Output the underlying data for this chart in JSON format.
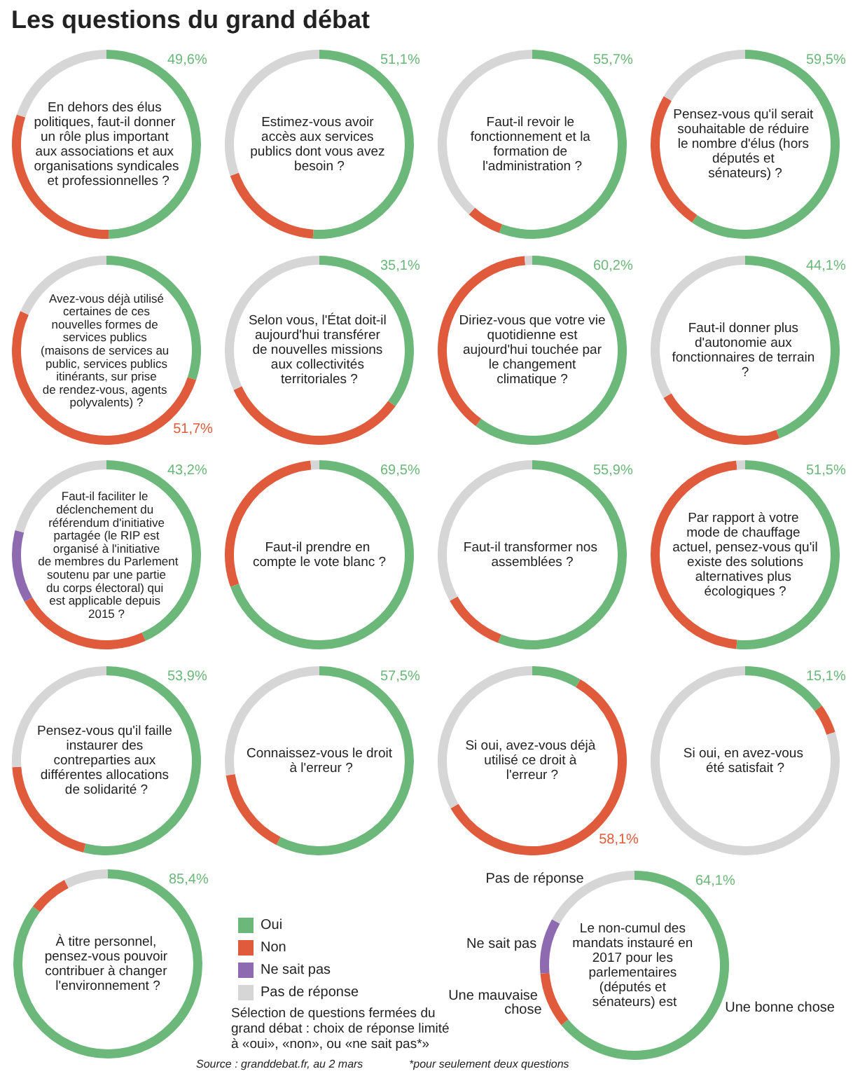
{
  "chart_data": [
    {
      "type": "other",
      "title": "Les questions du grand débat",
      "annotations": [
        "Sélection de questions fermées du grand débat :  choix de réponse limité à «oui», «non», ou «ne sait pas*»",
        "Source : granddebat.fr, au 2 mars",
        "*pour seulement deux questions"
      ]
    },
    {
      "type": "donut",
      "title": "En dehors des élus politiques, faut-il donner un rôle plus important aux associations et aux organisations syndicales et professionnelles ?",
      "categories": [
        null,
        null,
        null
      ],
      "values": [
        49.6,
        30.5,
        19.9
      ],
      "colors": [
        "#6cb87a",
        "#e05a3c",
        "#d6d6d6"
      ],
      "value_labels": [
        "49,6%",
        null,
        null
      ]
    },
    {
      "type": "donut",
      "title": "Estimez-vous avoir accès aux services publics dont vous avez besoin ?",
      "categories": [
        null,
        null,
        null
      ],
      "values": [
        51.1,
        18.5,
        30.4
      ],
      "colors": [
        "#6cb87a",
        "#e05a3c",
        "#d6d6d6"
      ],
      "value_labels": [
        "51,1%",
        null,
        null
      ]
    },
    {
      "type": "donut",
      "title": "Faut-il revoir le fonctionnement et la formation de l'administration ?",
      "categories": [
        null,
        null,
        null
      ],
      "values": [
        55.7,
        6,
        38.3
      ],
      "colors": [
        "#6cb87a",
        "#e05a3c",
        "#d6d6d6"
      ],
      "value_labels": [
        "55,7%",
        null,
        null
      ]
    },
    {
      "type": "donut",
      "title": "Pensez-vous qu'il serait souhaitable de réduire le nombre d'élus (hors députés et sénateurs) ?",
      "categories": [
        null,
        null,
        null
      ],
      "values": [
        59.5,
        24,
        16.5
      ],
      "colors": [
        "#6cb87a",
        "#e05a3c",
        "#d6d6d6"
      ],
      "value_labels": [
        "59,5%",
        null,
        null
      ]
    },
    {
      "type": "donut",
      "title": "Avez-vous déjà utilisé certaines de ces nouvelles formes de services publics (maisons de services au public, services publics itinérants, sur prise de rendez-vous, agents polyvalents) ?",
      "categories": [
        null,
        null,
        null
      ],
      "values": [
        30.1,
        51.7,
        18.2
      ],
      "colors": [
        "#6cb87a",
        "#e05a3c",
        "#d6d6d6"
      ],
      "value_labels": [
        null,
        "51,7%",
        null
      ]
    },
    {
      "type": "donut",
      "title": "Selon vous, l'État doit-il aujourd'hui transférer de nouvelles missions aux collectivités territoriales ?",
      "categories": [
        null,
        null,
        null
      ],
      "values": [
        35.1,
        33,
        31.9
      ],
      "colors": [
        "#6cb87a",
        "#e05a3c",
        "#d6d6d6"
      ],
      "value_labels": [
        "35,1%",
        null,
        null
      ]
    },
    {
      "type": "donut",
      "title": "Diriez-vous que votre vie quotidienne est aujourd'hui touchée par le changement climatique ?",
      "categories": [
        null,
        null,
        null
      ],
      "values": [
        60.2,
        38.5,
        1.3
      ],
      "colors": [
        "#6cb87a",
        "#e05a3c",
        "#d6d6d6"
      ],
      "value_labels": [
        "60,2%",
        null,
        null
      ]
    },
    {
      "type": "donut",
      "title": "Faut-il donner plus d'autonomie aux fonctionnaires de terrain ?",
      "categories": [
        null,
        null,
        null
      ],
      "values": [
        44.1,
        22.5,
        33.4
      ],
      "colors": [
        "#6cb87a",
        "#e05a3c",
        "#d6d6d6"
      ],
      "value_labels": [
        "44,1%",
        null,
        null
      ]
    },
    {
      "type": "donut",
      "title": "Faut-il faciliter le déclenchement du référendum d'initiative partagée (le RIP est organisé à l'initiative de membres du Parlement soutenu par une partie du corps électoral) qui est applicable depuis 2015 ?",
      "categories": [
        null,
        null,
        null,
        null
      ],
      "values": [
        43.2,
        23.5,
        12.5,
        20.8
      ],
      "colors": [
        "#6cb87a",
        "#e05a3c",
        "#8e6bb0",
        "#d6d6d6"
      ],
      "value_labels": [
        "43,2%",
        null,
        null,
        null
      ]
    },
    {
      "type": "donut",
      "title": "Faut-il prendre en compte le vote blanc ?",
      "categories": [
        null,
        null,
        null
      ],
      "values": [
        69.5,
        29,
        1.5
      ],
      "colors": [
        "#6cb87a",
        "#e05a3c",
        "#d6d6d6"
      ],
      "value_labels": [
        "69,5%",
        null,
        null
      ]
    },
    {
      "type": "donut",
      "title": "Faut-il transformer nos assemblées ?",
      "categories": [
        null,
        null,
        null
      ],
      "values": [
        55.9,
        11,
        33.1
      ],
      "colors": [
        "#6cb87a",
        "#e05a3c",
        "#d6d6d6"
      ],
      "value_labels": [
        "55,9%",
        null,
        null
      ]
    },
    {
      "type": "donut",
      "title": "Par rapport à votre mode de chauffage actuel, pensez-vous qu'il existe des solutions alternatives plus écologiques ?",
      "categories": [
        null,
        null,
        null
      ],
      "values": [
        51.5,
        47,
        1.5
      ],
      "colors": [
        "#6cb87a",
        "#e05a3c",
        "#d6d6d6"
      ],
      "value_labels": [
        "51,5%",
        null,
        null
      ]
    },
    {
      "type": "donut",
      "title": "Pensez-vous qu'il faille instaurer des contreparties aux différentes allocations de solidarité ?",
      "categories": [
        null,
        null,
        null
      ],
      "values": [
        53.9,
        20,
        26.1
      ],
      "colors": [
        "#6cb87a",
        "#e05a3c",
        "#d6d6d6"
      ],
      "value_labels": [
        "53,9%",
        null,
        null
      ]
    },
    {
      "type": "donut",
      "title": "Connaissez-vous le droit à l'erreur ?",
      "categories": [
        null,
        null,
        null
      ],
      "values": [
        57.5,
        15,
        27.5
      ],
      "colors": [
        "#6cb87a",
        "#e05a3c",
        "#d6d6d6"
      ],
      "value_labels": [
        "57,5%",
        null,
        null
      ]
    },
    {
      "type": "donut",
      "title": "Si oui, avez-vous déjà utilisé ce droit à l'erreur ?",
      "categories": [
        null,
        null,
        null
      ],
      "values": [
        8.5,
        58.1,
        33.4
      ],
      "colors": [
        "#6cb87a",
        "#e05a3c",
        "#d6d6d6"
      ],
      "value_labels": [
        null,
        "58,1%",
        null
      ]
    },
    {
      "type": "donut",
      "title": "Si oui, en avez-vous été satisfait ?",
      "categories": [
        null,
        null,
        null
      ],
      "values": [
        15.1,
        5,
        79.9
      ],
      "colors": [
        "#6cb87a",
        "#e05a3c",
        "#d6d6d6"
      ],
      "value_labels": [
        "15,1%",
        null,
        null
      ]
    },
    {
      "type": "donut",
      "title": "À titre personnel, pensez-vous pouvoir contribuer à changer l'environnement ?",
      "categories": [
        "Oui",
        "Non",
        "Ne sait pas",
        "Pas de réponse"
      ],
      "values": [
        85.4,
        7,
        0,
        7.6
      ],
      "colors": [
        "#6cb87a",
        "#e05a3c",
        "#8e6bb0",
        "#d6d6d6"
      ],
      "value_labels": [
        "85,4%",
        null,
        null,
        null
      ],
      "legend": "right"
    },
    {
      "type": "donut",
      "title": "Le non-cumul des mandats instauré en 2017 pour les parlementaires (députés et sénateurs) est",
      "categories": [
        "Une bonne chose",
        "Une mauvaise chose",
        "Ne sait pas",
        "Pas de réponse"
      ],
      "values": [
        64.1,
        9.5,
        9.5,
        16.9
      ],
      "colors": [
        "#6cb87a",
        "#e05a3c",
        "#8e6bb0",
        "#d6d6d6"
      ],
      "value_labels": [
        "64,1%",
        null,
        null,
        null
      ]
    }
  ]
}
